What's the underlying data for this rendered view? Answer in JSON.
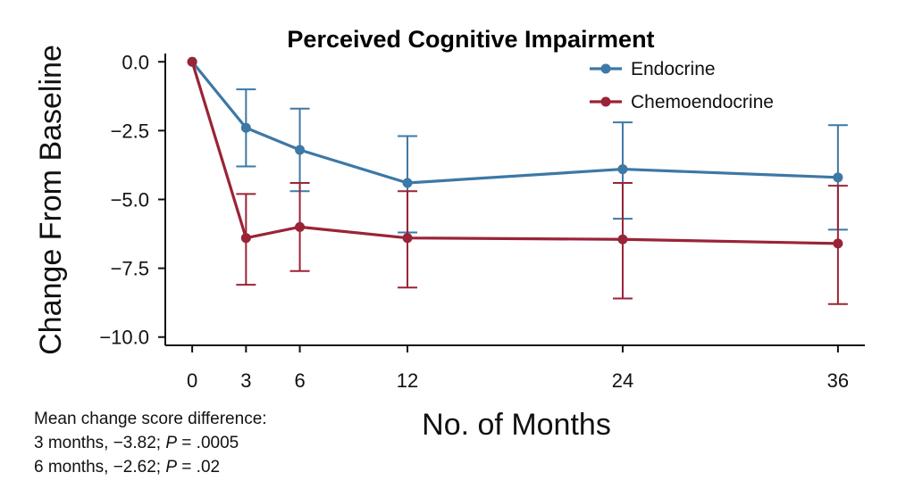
{
  "chart_data": {
    "type": "line",
    "title": "Perceived Cognitive Impairment",
    "xlabel": "No. of Months",
    "ylabel": "Change From Baseline",
    "x": [
      0,
      3,
      6,
      12,
      24,
      36
    ],
    "x_ticks": [
      "0",
      "3",
      "6",
      "12",
      "24",
      "36"
    ],
    "y_ticks": [
      "0.0",
      "−2.5",
      "−5.0",
      "−7.5",
      "−10.0"
    ],
    "y_tick_values": [
      0,
      -2.5,
      -5,
      -7.5,
      -10
    ],
    "xlim": [
      -1.5,
      37.5
    ],
    "ylim": [
      -10.3,
      0.3
    ],
    "grid": false,
    "legend_position": "top-right",
    "series": [
      {
        "name": "Endocrine",
        "color": "#3d78a6",
        "values": [
          0,
          -2.4,
          -3.2,
          -4.4,
          -3.9,
          -4.2
        ],
        "error_low": [
          null,
          -3.8,
          -4.7,
          -6.2,
          -5.7,
          -6.1
        ],
        "error_high": [
          null,
          -1.0,
          -1.7,
          -2.7,
          -2.2,
          -2.3
        ]
      },
      {
        "name": "Chemoendocrine",
        "color": "#9a2437",
        "values": [
          0,
          -6.4,
          -6.0,
          -6.4,
          -6.45,
          -6.6
        ],
        "error_low": [
          null,
          -8.1,
          -7.6,
          -8.2,
          -8.6,
          -8.8
        ],
        "error_high": [
          null,
          -4.8,
          -4.4,
          -4.7,
          -4.4,
          -4.5
        ]
      }
    ]
  },
  "footnote": {
    "line1": "Mean change score difference:",
    "line2_prefix": "3 months, −3.82; ",
    "line2_p": "P",
    "line2_suffix": " = .0005",
    "line3_prefix": "6 months, −2.62; ",
    "line3_p": "P",
    "line3_suffix": " = .02"
  }
}
